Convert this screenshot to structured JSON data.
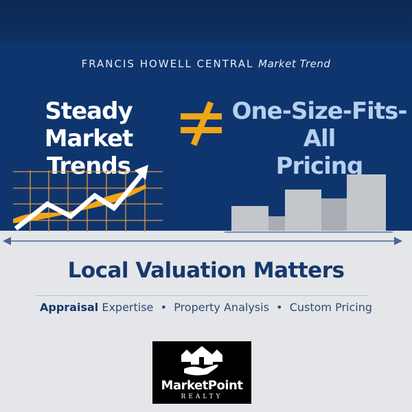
{
  "header": {
    "kicker_prefix": "FRANCIS HOWELL CENTRAL",
    "kicker_suffix": "Market Trend"
  },
  "left_title": {
    "line1": "Steady Market",
    "line2": "Trends"
  },
  "symbol": "≠",
  "right_title": {
    "line1": "One-Size-Fits-All",
    "line2": "Pricing"
  },
  "main_heading": "Local Valuation Matters",
  "subline": {
    "item1_bold": "Appraisal",
    "item1_rest": "Expertise",
    "sep": "•",
    "item2": "Property Analysis",
    "item3": "Custom Pricing"
  },
  "logo": {
    "name": "MarketPoint",
    "tagline": "REALTY",
    "icon": "houses-in-hand-icon"
  },
  "colors": {
    "navy": "#0f356f",
    "accent": "#f2a516",
    "light_blue": "#b6d0ee",
    "bar_gray": "#c3c6cb"
  }
}
